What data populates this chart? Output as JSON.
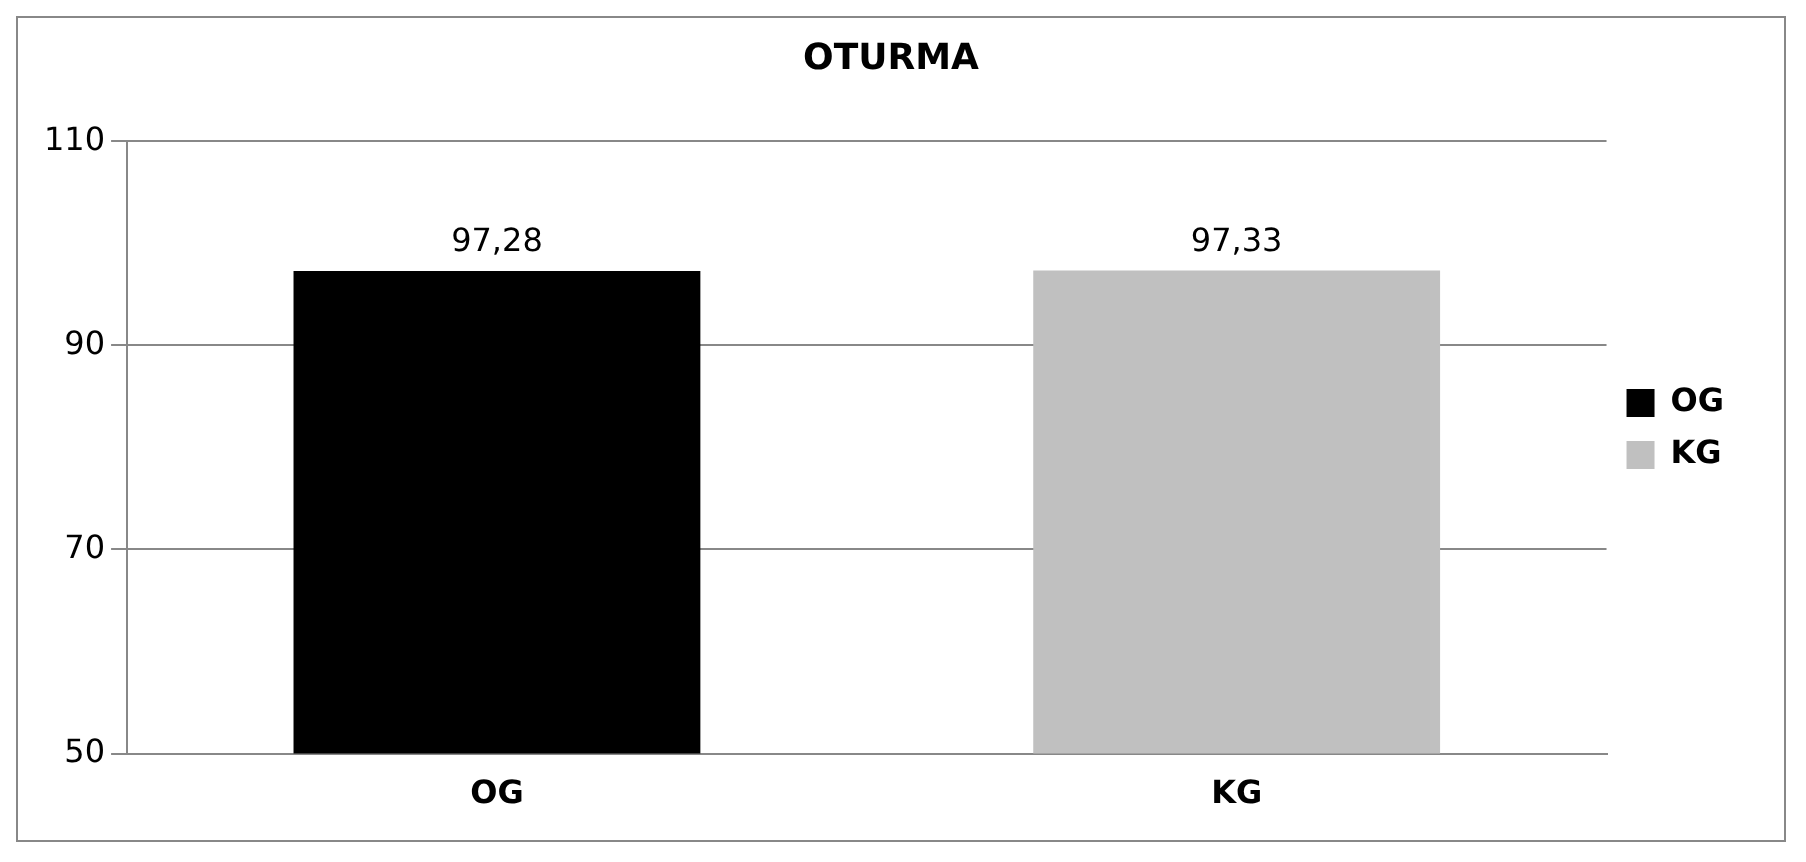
{
  "chart_data": {
    "type": "bar",
    "title": "OTURMA",
    "categories": [
      "OG",
      "KG"
    ],
    "series": [
      {
        "name": "OG",
        "color": "#000000",
        "values": [
          97.28,
          null
        ],
        "value_labels": [
          "97,28",
          null
        ]
      },
      {
        "name": "KG",
        "color": "#c0c0c0",
        "values": [
          null,
          97.33
        ],
        "value_labels": [
          null,
          "97,33"
        ]
      }
    ],
    "ylim": [
      50,
      110
    ],
    "yticks": [
      50,
      70,
      90,
      110
    ],
    "grid": "y",
    "legend": "right"
  }
}
